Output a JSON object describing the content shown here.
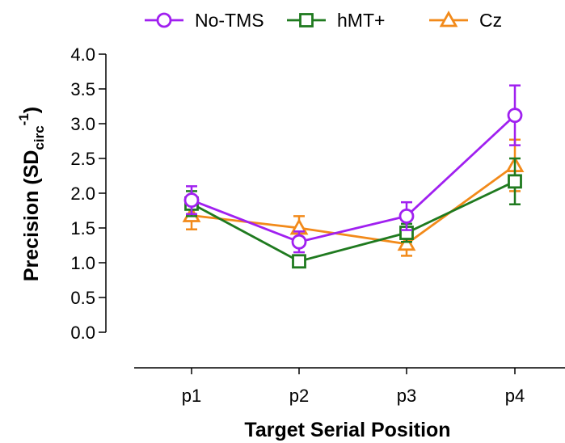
{
  "chart_data": {
    "type": "line",
    "categories": [
      "p1",
      "p2",
      "p3",
      "p4"
    ],
    "xlabel": "Target Serial Position",
    "ylabel_main": "Precision (SD",
    "ylabel_sub": "circ",
    "ylabel_sup": "-1",
    "ylabel_close": ")",
    "ylim": [
      0,
      4
    ],
    "yticks": [
      "0.0",
      "0.5",
      "1.0",
      "1.5",
      "2.0",
      "2.5",
      "3.0",
      "3.5",
      "4.0"
    ],
    "legend_position": "top",
    "series": [
      {
        "name": "No-TMS",
        "color": "#a020f0",
        "marker": "circle",
        "values": [
          1.9,
          1.3,
          1.67,
          3.12
        ],
        "errors": [
          0.2,
          0.15,
          0.2,
          0.43
        ]
      },
      {
        "name": "hMT+",
        "color": "#1f7a1f",
        "marker": "square",
        "values": [
          1.85,
          1.02,
          1.43,
          2.17
        ],
        "errors": [
          0.18,
          0.07,
          0.13,
          0.33
        ]
      },
      {
        "name": "Cz",
        "color": "#f28a1a",
        "marker": "triangle",
        "values": [
          1.68,
          1.5,
          1.27,
          2.4
        ],
        "errors": [
          0.2,
          0.17,
          0.17,
          0.37
        ]
      }
    ]
  }
}
